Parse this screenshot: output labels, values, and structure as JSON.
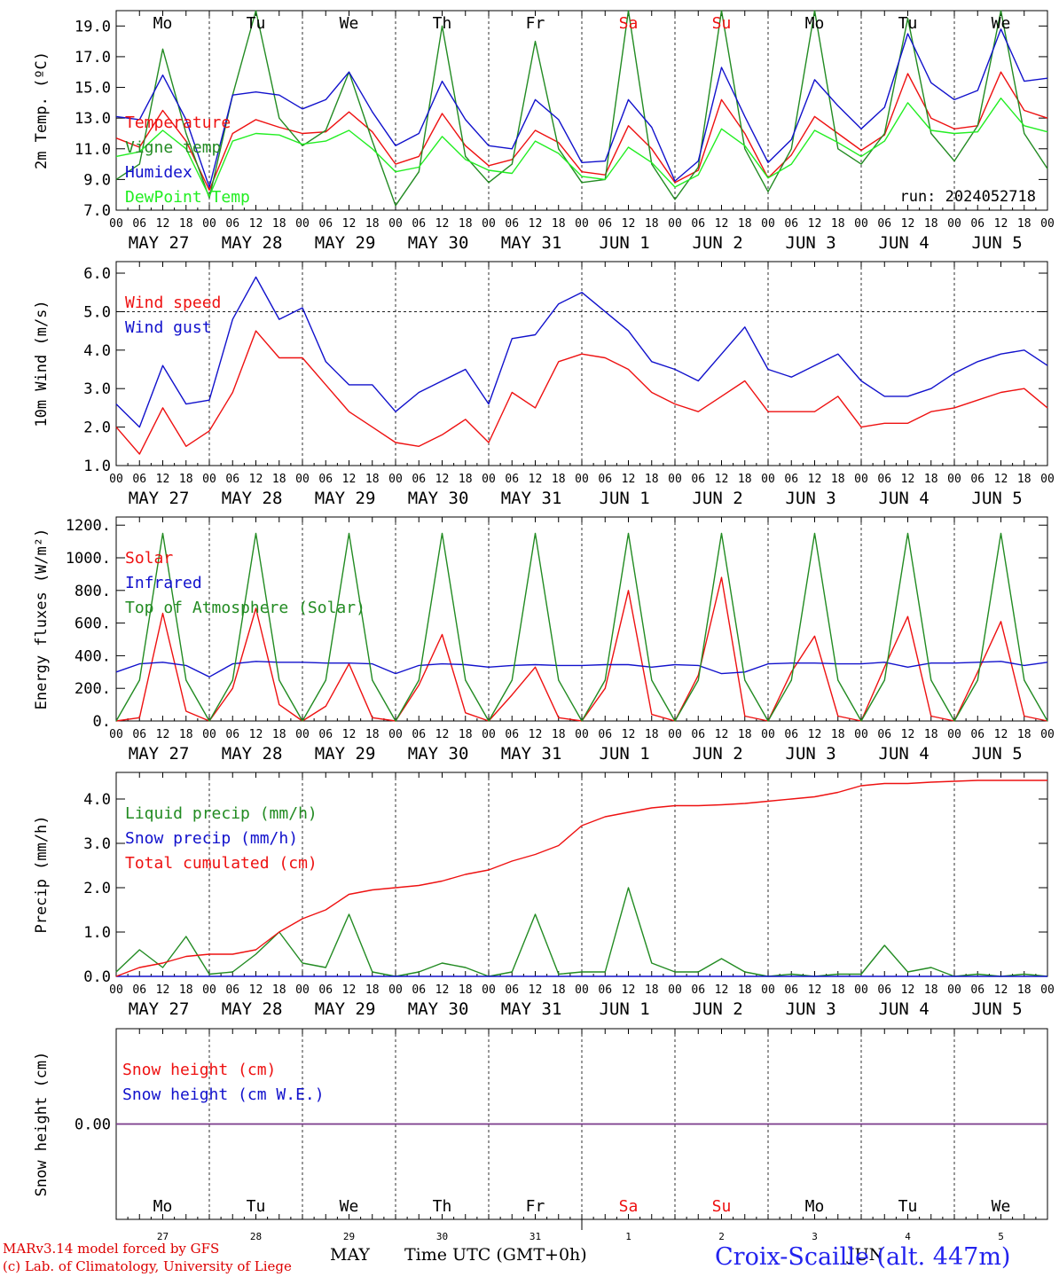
{
  "chart_data": [
    {
      "type": "line",
      "ylabel": "2m Temp. (ºC)",
      "ylim": [
        7,
        20
      ],
      "yticks": [
        "7.0",
        "9.0",
        "11.0",
        "13.0",
        "15.0",
        "17.0",
        "19.0"
      ],
      "ytick_values": [
        7,
        9,
        11,
        13,
        15,
        17,
        19
      ],
      "x_hours": [
        0,
        6,
        12,
        18,
        24,
        30,
        36,
        42,
        48,
        54,
        60,
        66,
        72,
        78,
        84,
        90,
        96,
        102,
        108,
        114,
        120,
        126,
        132,
        138,
        144,
        150,
        156,
        162,
        168,
        174,
        180,
        186,
        192,
        198,
        204,
        210,
        216,
        222,
        228,
        234,
        240
      ],
      "legend": [
        "Temperature",
        "Vigne temp",
        "Humidex",
        "DewPoint Temp"
      ],
      "run_label": "run: 2024052718",
      "series": [
        {
          "name": "Temperature",
          "color": "#ee1111",
          "values": [
            11.7,
            11.1,
            13.5,
            11.5,
            8.3,
            12.0,
            12.9,
            12.4,
            12.0,
            12.1,
            13.4,
            12.1,
            10.0,
            10.5,
            13.3,
            11.2,
            9.9,
            10.3,
            12.2,
            11.4,
            9.5,
            9.3,
            12.5,
            11.0,
            8.8,
            9.6,
            14.2,
            12.0,
            9.1,
            10.6,
            13.1,
            12.0,
            10.9,
            11.9,
            15.9,
            13.0,
            12.3,
            12.5,
            16.0,
            13.5,
            13.0
          ]
        },
        {
          "name": "Vigne temp",
          "color": "#228b22",
          "values": [
            9.0,
            10.0,
            17.5,
            12.0,
            7.8,
            14.5,
            20.0,
            13.0,
            11.2,
            12.2,
            16.0,
            11.5,
            7.3,
            9.5,
            19.0,
            10.5,
            8.8,
            10.0,
            18.0,
            11.0,
            8.8,
            9.0,
            20.0,
            10.0,
            7.7,
            9.8,
            20.0,
            11.0,
            8.2,
            11.0,
            20.0,
            11.0,
            10.0,
            12.0,
            19.5,
            12.0,
            10.2,
            12.5,
            20.0,
            12.0,
            9.7
          ]
        },
        {
          "name": "Humidex",
          "color": "#1111cc",
          "values": [
            13.1,
            12.9,
            15.8,
            12.9,
            8.5,
            14.5,
            14.7,
            14.5,
            13.6,
            14.2,
            16.0,
            13.4,
            11.2,
            12.0,
            15.4,
            12.9,
            11.2,
            11.0,
            14.2,
            12.9,
            10.1,
            10.2,
            14.2,
            12.4,
            8.9,
            10.2,
            16.3,
            13.1,
            10.1,
            11.6,
            15.5,
            13.8,
            12.3,
            13.7,
            18.5,
            15.3,
            14.2,
            14.8,
            18.8,
            15.4,
            15.6
          ]
        },
        {
          "name": "DewPoint Temp",
          "color": "#22ee22",
          "values": [
            10.5,
            10.8,
            12.2,
            11.0,
            7.9,
            11.5,
            12.0,
            11.9,
            11.3,
            11.5,
            12.2,
            11.0,
            9.5,
            9.8,
            11.8,
            10.3,
            9.6,
            9.4,
            11.5,
            10.7,
            9.2,
            9.0,
            11.1,
            10.1,
            8.5,
            9.3,
            12.3,
            11.2,
            9.1,
            10.0,
            12.2,
            11.4,
            10.5,
            11.5,
            14.0,
            12.2,
            12.0,
            12.1,
            14.3,
            12.5,
            12.1
          ]
        }
      ]
    },
    {
      "type": "line",
      "ylabel": "10m Wind (m/s)",
      "ylim": [
        1,
        6.3
      ],
      "yticks": [
        "1.0",
        "2.0",
        "3.0",
        "4.0",
        "5.0",
        "6.0"
      ],
      "ytick_values": [
        1,
        2,
        3,
        4,
        5,
        6
      ],
      "x_hours": [
        0,
        6,
        12,
        18,
        24,
        30,
        36,
        42,
        48,
        54,
        60,
        66,
        72,
        78,
        84,
        90,
        96,
        102,
        108,
        114,
        120,
        126,
        132,
        138,
        144,
        150,
        156,
        162,
        168,
        174,
        180,
        186,
        192,
        198,
        204,
        210,
        216,
        222,
        228,
        234,
        240
      ],
      "legend": [
        "Wind speed",
        "Wind gust"
      ],
      "series": [
        {
          "name": "Wind speed",
          "color": "#ee1111",
          "values": [
            2.0,
            1.3,
            2.5,
            1.5,
            1.9,
            2.9,
            4.5,
            3.8,
            3.8,
            3.1,
            2.4,
            2.0,
            1.6,
            1.5,
            1.8,
            2.2,
            1.6,
            2.9,
            2.5,
            3.7,
            3.9,
            3.8,
            3.5,
            2.9,
            2.6,
            2.4,
            2.8,
            3.2,
            2.4,
            2.4,
            2.4,
            2.8,
            2.0,
            2.1,
            2.1,
            2.4,
            2.5,
            2.7,
            2.9,
            3.0,
            2.5
          ]
        },
        {
          "name": "Wind gust",
          "color": "#1111cc",
          "values": [
            2.6,
            2.0,
            3.6,
            2.6,
            2.7,
            4.8,
            5.9,
            4.8,
            5.1,
            3.7,
            3.1,
            3.1,
            2.4,
            2.9,
            3.2,
            3.5,
            2.6,
            4.3,
            4.4,
            5.2,
            5.5,
            5.0,
            4.5,
            3.7,
            3.5,
            3.2,
            3.9,
            4.6,
            3.5,
            3.3,
            3.6,
            3.9,
            3.2,
            2.8,
            2.8,
            3.0,
            3.4,
            3.7,
            3.9,
            4.0,
            3.6
          ]
        }
      ]
    },
    {
      "type": "line",
      "ylabel": "Energy fluxes (W/m²)",
      "ylim": [
        0,
        1250
      ],
      "yticks": [
        "0.",
        "200.",
        "400.",
        "600.",
        "800.",
        "1000.",
        "1200."
      ],
      "ytick_values": [
        0,
        200,
        400,
        600,
        800,
        1000,
        1200
      ],
      "x_hours": [
        0,
        6,
        12,
        18,
        24,
        30,
        36,
        42,
        48,
        54,
        60,
        66,
        72,
        78,
        84,
        90,
        96,
        102,
        108,
        114,
        120,
        126,
        132,
        138,
        144,
        150,
        156,
        162,
        168,
        174,
        180,
        186,
        192,
        198,
        204,
        210,
        216,
        222,
        228,
        234,
        240
      ],
      "legend": [
        "Solar",
        "Infrared",
        "Top of Atmosphere (Solar)"
      ],
      "series": [
        {
          "name": "Solar",
          "color": "#ee1111",
          "values": [
            0,
            20,
            660,
            60,
            0,
            200,
            690,
            100,
            0,
            90,
            350,
            20,
            0,
            220,
            530,
            50,
            0,
            160,
            330,
            20,
            0,
            200,
            800,
            40,
            0,
            280,
            880,
            30,
            0,
            300,
            520,
            30,
            0,
            330,
            640,
            30,
            0,
            300,
            610,
            30,
            0
          ]
        },
        {
          "name": "Infrared",
          "color": "#1111cc",
          "values": [
            300,
            350,
            360,
            340,
            270,
            350,
            365,
            360,
            360,
            355,
            355,
            350,
            290,
            340,
            350,
            345,
            330,
            340,
            345,
            340,
            340,
            345,
            345,
            330,
            345,
            340,
            290,
            300,
            350,
            355,
            355,
            350,
            350,
            360,
            330,
            355,
            355,
            360,
            365,
            340,
            360
          ]
        },
        {
          "name": "Top of Atmosphere (Solar)",
          "color": "#228b22",
          "values": [
            0,
            250,
            1150,
            250,
            0,
            250,
            1150,
            250,
            0,
            250,
            1150,
            250,
            0,
            250,
            1150,
            250,
            0,
            250,
            1150,
            250,
            0,
            250,
            1150,
            250,
            0,
            250,
            1150,
            250,
            0,
            250,
            1150,
            250,
            0,
            250,
            1150,
            250,
            0,
            250,
            1150,
            250,
            0
          ]
        }
      ]
    },
    {
      "type": "line",
      "ylabel": "Precip (mm/h)",
      "ylim": [
        0,
        4.6
      ],
      "yticks": [
        "0.0",
        "1.0",
        "2.0",
        "3.0",
        "4.0"
      ],
      "ytick_values": [
        0,
        1,
        2,
        3,
        4
      ],
      "x_hours": [
        0,
        6,
        12,
        18,
        24,
        30,
        36,
        42,
        48,
        54,
        60,
        66,
        72,
        78,
        84,
        90,
        96,
        102,
        108,
        114,
        120,
        126,
        132,
        138,
        144,
        150,
        156,
        162,
        168,
        174,
        180,
        186,
        192,
        198,
        204,
        210,
        216,
        222,
        228,
        234,
        240
      ],
      "legend": [
        "Liquid precip (mm/h)",
        "Snow precip (mm/h)",
        "Total cumulated (cm)"
      ],
      "series": [
        {
          "name": "Liquid precip (mm/h)",
          "color": "#228b22",
          "values": [
            0.1,
            0.6,
            0.2,
            0.9,
            0.05,
            0.1,
            0.5,
            1.0,
            0.3,
            0.2,
            1.4,
            0.1,
            0.0,
            0.1,
            0.3,
            0.2,
            0.0,
            0.1,
            1.4,
            0.05,
            0.1,
            0.1,
            2.0,
            0.3,
            0.1,
            0.1,
            0.4,
            0.1,
            0.0,
            0.05,
            0.0,
            0.05,
            0.05,
            0.7,
            0.1,
            0.2,
            0.0,
            0.05,
            0.0,
            0.05,
            0.0
          ]
        },
        {
          "name": "Snow precip (mm/h)",
          "color": "#1111cc",
          "values": [
            0,
            0,
            0,
            0,
            0,
            0,
            0,
            0,
            0,
            0,
            0,
            0,
            0,
            0,
            0,
            0,
            0,
            0,
            0,
            0,
            0,
            0,
            0,
            0,
            0,
            0,
            0,
            0,
            0,
            0,
            0,
            0,
            0,
            0,
            0,
            0,
            0,
            0,
            0,
            0,
            0
          ]
        },
        {
          "name": "Total cumulated (cm)",
          "color": "#ee1111",
          "values": [
            0.0,
            0.2,
            0.3,
            0.45,
            0.5,
            0.5,
            0.6,
            1.0,
            1.3,
            1.5,
            1.85,
            1.95,
            2.0,
            2.05,
            2.15,
            2.3,
            2.4,
            2.6,
            2.75,
            2.95,
            3.4,
            3.6,
            3.7,
            3.8,
            3.85,
            3.85,
            3.87,
            3.9,
            3.95,
            4.0,
            4.05,
            4.15,
            4.3,
            4.35,
            4.35,
            4.38,
            4.4,
            4.42,
            4.42,
            4.42,
            4.42
          ]
        }
      ]
    },
    {
      "type": "line",
      "ylabel": "Snow height (cm)",
      "ylim": [
        -1,
        1
      ],
      "yticks": [
        "0.00"
      ],
      "ytick_values": [
        0
      ],
      "x_hours": [
        0,
        240
      ],
      "legend": [
        "Snow height (cm)",
        "Snow height (cm W.E.)"
      ],
      "series": [
        {
          "name": "Snow height (cm)",
          "color": "#ee1111",
          "values": [
            0,
            0
          ]
        },
        {
          "name": "Snow height (cm W.E.)",
          "color": "#1111cc",
          "values": [
            0,
            0
          ]
        }
      ]
    }
  ],
  "x_axis": {
    "hour_labels": [
      "00",
      "06",
      "12",
      "18"
    ],
    "end_label": "00",
    "dates": [
      "MAY 27",
      "MAY 28",
      "MAY 29",
      "MAY 30",
      "MAY 31",
      "JUN  1",
      "JUN  2",
      "JUN  3",
      "JUN  4",
      "JUN  5"
    ],
    "weekdays": [
      "Mo",
      "Tu",
      "We",
      "Th",
      "Fr",
      "Sa",
      "Su",
      "Mo",
      "Tu",
      "We"
    ],
    "weekend_days": [
      5,
      6
    ],
    "day_numbers": [
      "27",
      "28",
      "29",
      "30",
      "31",
      "1",
      "2",
      "3",
      "4",
      "5"
    ],
    "month_left": "MAY",
    "month_right": "JUN",
    "time_label": "Time UTC (GMT+0h)"
  },
  "colors": {
    "weekday": "#000000",
    "weekend": "#ee1111",
    "footer_left": "#dd0000",
    "station": "#2222ee",
    "snow_line": "#7a3a8a"
  },
  "footer": {
    "line1": "MARv3.14 model forced by GFS",
    "line2": "(c) Lab. of Climatology, University of Liege",
    "station": "Croix-Scaille (alt. 447m)"
  }
}
